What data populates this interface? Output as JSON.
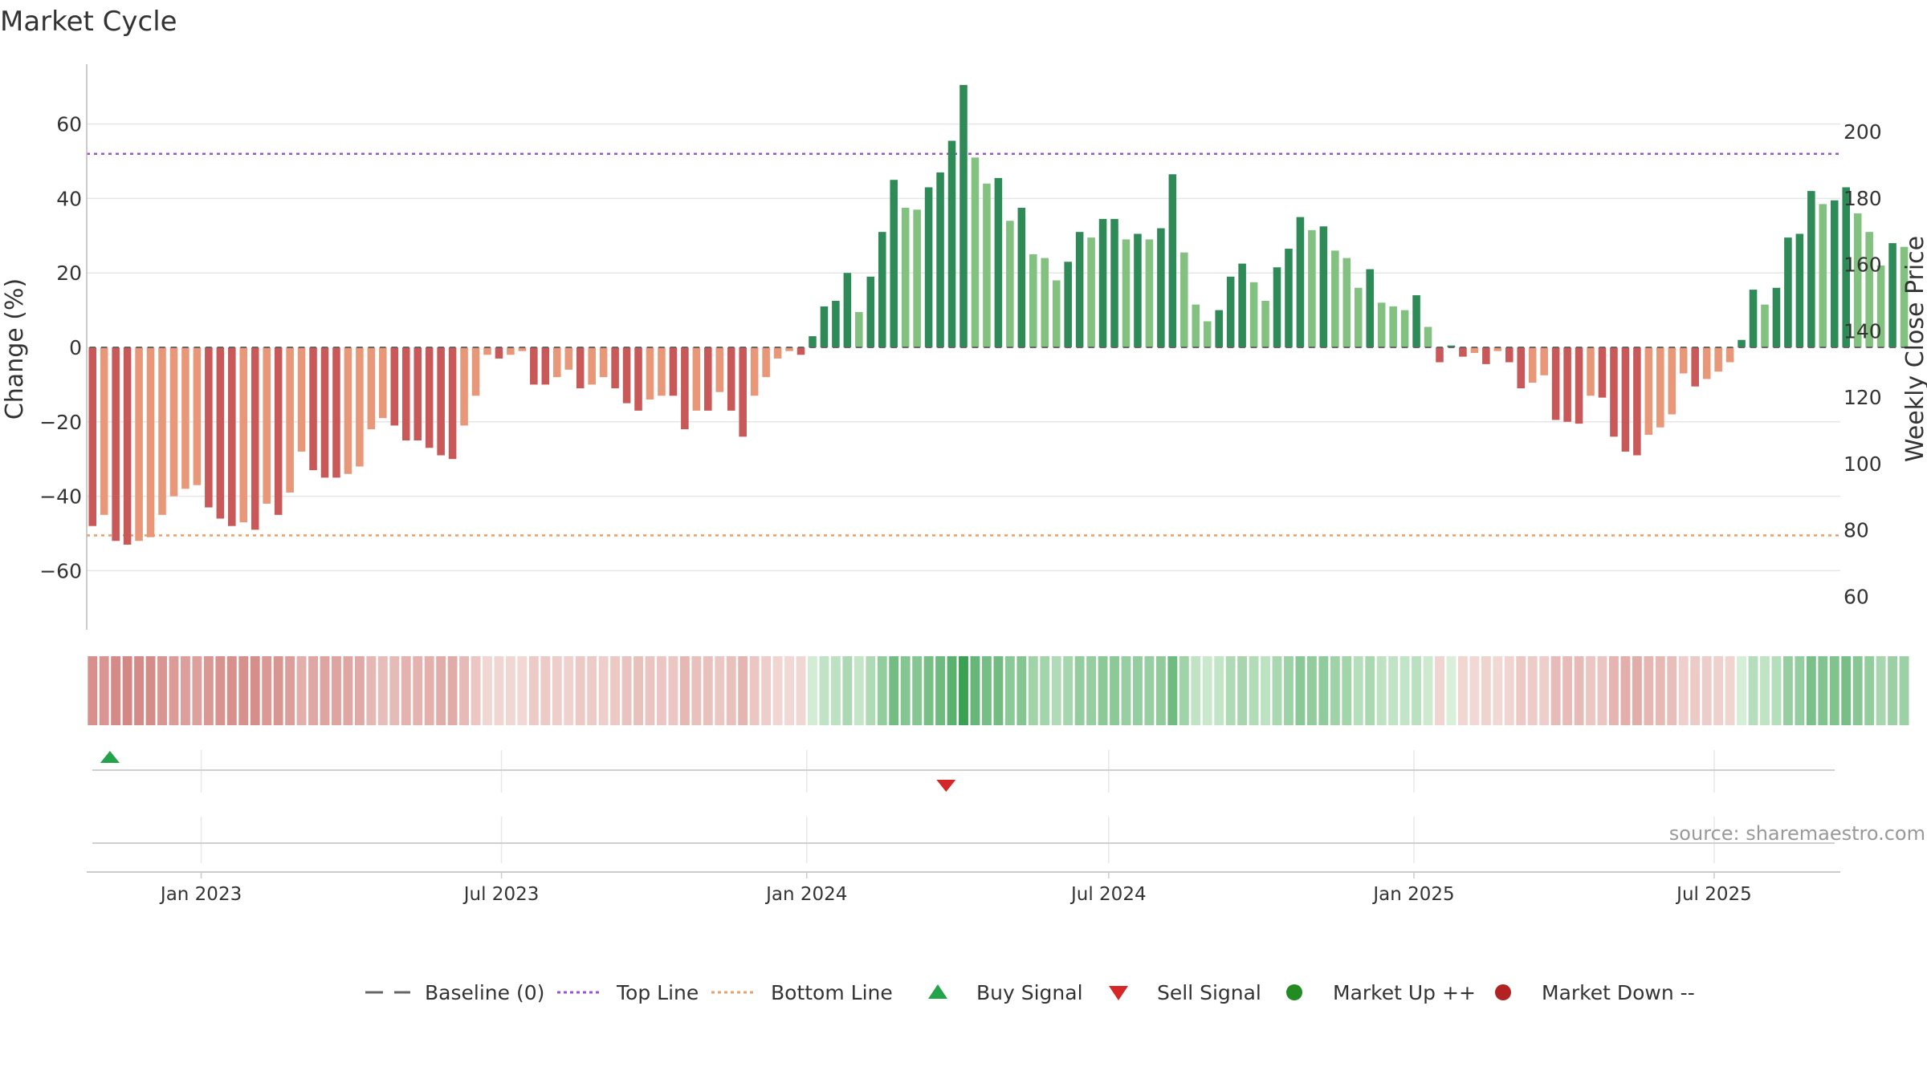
{
  "chart_data": {
    "type": "bar",
    "title": "Market Cycle",
    "ylabel": "Change (%)",
    "y2label": "Weekly Close Price",
    "ylim": [
      -76,
      76
    ],
    "y2lim": [
      50,
      222
    ],
    "yticks": [
      -60,
      -40,
      -20,
      0,
      20,
      40,
      60
    ],
    "y2ticks": [
      60,
      80,
      100,
      120,
      140,
      160,
      180,
      200
    ],
    "top_line": 52,
    "bottom_line": -50.5,
    "x_start": "2022-10-24",
    "x_end": "2025-09-15",
    "x_ticks": [
      {
        "date": "2023-01-01",
        "label": "Jan 2023"
      },
      {
        "date": "2023-07-01",
        "label": "Jul 2023"
      },
      {
        "date": "2024-01-01",
        "label": "Jan 2024"
      },
      {
        "date": "2024-07-01",
        "label": "Jul 2024"
      },
      {
        "date": "2025-01-01",
        "label": "Jan 2025"
      },
      {
        "date": "2025-07-01",
        "label": "Jul 2025"
      }
    ],
    "first_week": "2022-10-24",
    "values": [
      -48,
      -45,
      -52,
      -53,
      -52,
      -51,
      -45,
      -40,
      -38,
      -37,
      -43,
      -46,
      -48,
      -47,
      -49,
      -42,
      -45,
      -39,
      -28,
      -33,
      -35,
      -35,
      -34,
      -32,
      -22,
      -19,
      -21,
      -25,
      -25,
      -27,
      -29,
      -30,
      -21,
      -13,
      -2,
      -3,
      -2,
      -1,
      -10,
      -10,
      -8,
      -6,
      -11,
      -10,
      -8,
      -11,
      -15,
      -17,
      -14,
      -13,
      -13,
      -22,
      -17,
      -17,
      -12,
      -17,
      -24,
      -13,
      -8,
      -3,
      -1,
      -2,
      3,
      11,
      12.5,
      20,
      9.5,
      19,
      31,
      45,
      37.5,
      37,
      43,
      47,
      55.5,
      70.5,
      51,
      44,
      45.5,
      34,
      37.5,
      25,
      24,
      18,
      23,
      31,
      29.5,
      34.5,
      34.5,
      29,
      30.5,
      29,
      32,
      46.5,
      25.5,
      11.5,
      7,
      10,
      19,
      22.5,
      17.5,
      12.5,
      21.5,
      26.5,
      35,
      31.5,
      32.5,
      26,
      24,
      16,
      21,
      12,
      11,
      10,
      14,
      5.5,
      -4,
      0.5,
      -2.5,
      -1.5,
      -4.5,
      -1,
      -4,
      -11,
      -9.5,
      -7.5,
      -19.5,
      -20,
      -20.5,
      -13,
      -13.5,
      -24,
      -28,
      -29,
      -23.5,
      -21.5,
      -18,
      -7,
      -10.5,
      -8.5,
      -6.5,
      -4,
      2,
      15.5,
      11.5,
      16,
      29.5,
      30.5,
      42,
      38.5,
      39.5,
      43,
      36,
      31,
      22,
      28,
      27
    ],
    "buy_signals": [
      "2022-11-07"
    ],
    "sell_signals": [
      "2024-03-25"
    ],
    "source": "source: sharemaestro.com",
    "colors": {
      "up_strong": "#2e8b57",
      "up_weak": "#82c17f",
      "down_strong": "#c95858",
      "down_weak": "#e89778",
      "top_line": "#9955cc",
      "bottom_line": "#e8a06a",
      "baseline": "#666666",
      "buy": "#23a34a",
      "sell": "#d62728",
      "market_up": "#228b22",
      "market_down": "#b22222"
    },
    "legend": [
      {
        "label": "Baseline (0)",
        "symbol": "dash",
        "color": "#666666"
      },
      {
        "label": "Top Line",
        "symbol": "dot",
        "color": "#9955cc"
      },
      {
        "label": "Bottom Line",
        "symbol": "dot",
        "color": "#e8a06a"
      },
      {
        "label": "Buy Signal",
        "symbol": "triangle-up",
        "color": "#23a34a"
      },
      {
        "label": "Sell Signal",
        "symbol": "triangle-down",
        "color": "#d62728"
      },
      {
        "label": "Market Up ++",
        "symbol": "circle",
        "color": "#228b22"
      },
      {
        "label": "Market Down --",
        "symbol": "circle",
        "color": "#b22222"
      }
    ],
    "legend_position": "bottom"
  }
}
